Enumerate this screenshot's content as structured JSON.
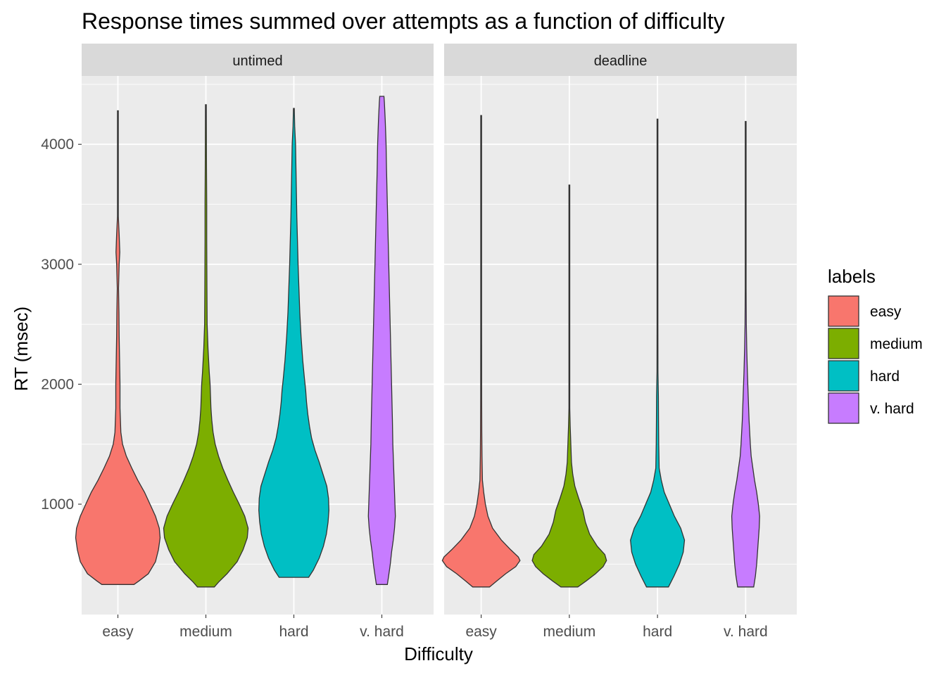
{
  "chart_data": {
    "type": "violin",
    "title": "Response times summed over attempts as a function of difficulty",
    "xlabel": "Difficulty",
    "ylabel": "RT (msec)",
    "categories": [
      "easy",
      "medium",
      "hard",
      "v. hard"
    ],
    "ylim": [
      80,
      4570
    ],
    "yticks": [
      1000,
      2000,
      3000,
      4000
    ],
    "grid": true,
    "legend": {
      "title": "labels",
      "position": "right",
      "entries": [
        "easy",
        "medium",
        "hard",
        "v. hard"
      ]
    },
    "colors": {
      "easy": "#F8766D",
      "medium": "#7CAE00",
      "hard": "#00BFC4",
      "v. hard": "#C77CFF",
      "panel_bg": "#EBEBEB",
      "strip_bg": "#D9D9D9",
      "grid": "#FFFFFF",
      "outline": "#333333"
    },
    "facets": [
      {
        "name": "untimed",
        "violins": [
          {
            "category": "easy",
            "min": 330,
            "max": 4280,
            "profile": [
              [
                330,
                0.38
              ],
              [
                360,
                0.5
              ],
              [
                420,
                0.72
              ],
              [
                520,
                0.89
              ],
              [
                620,
                0.96
              ],
              [
                720,
                1.0
              ],
              [
                800,
                0.98
              ],
              [
                900,
                0.89
              ],
              [
                1000,
                0.76
              ],
              [
                1100,
                0.63
              ],
              [
                1200,
                0.47
              ],
              [
                1300,
                0.33
              ],
              [
                1400,
                0.2
              ],
              [
                1500,
                0.11
              ],
              [
                1600,
                0.07
              ],
              [
                1800,
                0.05
              ],
              [
                2000,
                0.05
              ],
              [
                2200,
                0.04
              ],
              [
                2400,
                0.03
              ],
              [
                2600,
                0.025
              ],
              [
                2800,
                0.015
              ],
              [
                3000,
                0.03
              ],
              [
                3100,
                0.045
              ],
              [
                3250,
                0.03
              ],
              [
                3400,
                0.01
              ],
              [
                3600,
                0.008
              ],
              [
                4280,
                0.006
              ]
            ]
          },
          {
            "category": "medium",
            "min": 310,
            "max": 4330,
            "profile": [
              [
                310,
                0.2
              ],
              [
                350,
                0.3
              ],
              [
                420,
                0.5
              ],
              [
                520,
                0.74
              ],
              [
                620,
                0.88
              ],
              [
                720,
                0.98
              ],
              [
                800,
                1.0
              ],
              [
                900,
                0.92
              ],
              [
                1000,
                0.79
              ],
              [
                1100,
                0.65
              ],
              [
                1200,
                0.52
              ],
              [
                1300,
                0.4
              ],
              [
                1400,
                0.3
              ],
              [
                1500,
                0.22
              ],
              [
                1600,
                0.17
              ],
              [
                1700,
                0.14
              ],
              [
                1800,
                0.12
              ],
              [
                1900,
                0.11
              ],
              [
                2000,
                0.1
              ],
              [
                2100,
                0.08
              ],
              [
                2300,
                0.05
              ],
              [
                2500,
                0.03
              ],
              [
                2800,
                0.025
              ],
              [
                3200,
                0.02
              ],
              [
                3500,
                0.02
              ],
              [
                3800,
                0.015
              ],
              [
                4330,
                0.008
              ]
            ]
          },
          {
            "category": "hard",
            "min": 390,
            "max": 4300,
            "profile": [
              [
                390,
                0.35
              ],
              [
                450,
                0.46
              ],
              [
                550,
                0.6
              ],
              [
                650,
                0.7
              ],
              [
                750,
                0.77
              ],
              [
                850,
                0.81
              ],
              [
                950,
                0.83
              ],
              [
                1050,
                0.82
              ],
              [
                1150,
                0.78
              ],
              [
                1250,
                0.69
              ],
              [
                1350,
                0.6
              ],
              [
                1450,
                0.5
              ],
              [
                1550,
                0.42
              ],
              [
                1650,
                0.37
              ],
              [
                1750,
                0.33
              ],
              [
                1850,
                0.3
              ],
              [
                1950,
                0.28
              ],
              [
                2050,
                0.25
              ],
              [
                2200,
                0.21
              ],
              [
                2400,
                0.17
              ],
              [
                2600,
                0.14
              ],
              [
                2800,
                0.12
              ],
              [
                3000,
                0.1
              ],
              [
                3200,
                0.085
              ],
              [
                3400,
                0.07
              ],
              [
                3600,
                0.06
              ],
              [
                3800,
                0.05
              ],
              [
                4000,
                0.04
              ],
              [
                4150,
                0.02
              ],
              [
                4300,
                0.008
              ]
            ]
          },
          {
            "category": "v. hard",
            "min": 330,
            "max": 4400,
            "profile": [
              [
                330,
                0.13
              ],
              [
                400,
                0.16
              ],
              [
                500,
                0.2
              ],
              [
                600,
                0.23
              ],
              [
                700,
                0.27
              ],
              [
                800,
                0.3
              ],
              [
                900,
                0.32
              ],
              [
                1000,
                0.31
              ],
              [
                1100,
                0.3
              ],
              [
                1200,
                0.29
              ],
              [
                1300,
                0.28
              ],
              [
                1500,
                0.26
              ],
              [
                1700,
                0.25
              ],
              [
                2000,
                0.23
              ],
              [
                2300,
                0.21
              ],
              [
                2600,
                0.19
              ],
              [
                2900,
                0.17
              ],
              [
                3200,
                0.15
              ],
              [
                3500,
                0.13
              ],
              [
                3800,
                0.11
              ],
              [
                4000,
                0.1
              ],
              [
                4200,
                0.08
              ],
              [
                4350,
                0.06
              ],
              [
                4400,
                0.05
              ]
            ]
          }
        ]
      },
      {
        "name": "deadline",
        "violins": [
          {
            "category": "easy",
            "min": 310,
            "max": 4240,
            "profile": [
              [
                310,
                0.2
              ],
              [
                360,
                0.37
              ],
              [
                420,
                0.58
              ],
              [
                480,
                0.82
              ],
              [
                530,
                0.92
              ],
              [
                560,
                0.88
              ],
              [
                620,
                0.7
              ],
              [
                700,
                0.48
              ],
              [
                800,
                0.27
              ],
              [
                900,
                0.16
              ],
              [
                1000,
                0.1
              ],
              [
                1100,
                0.06
              ],
              [
                1200,
                0.03
              ],
              [
                1400,
                0.02
              ],
              [
                1600,
                0.015
              ],
              [
                1900,
                0.012
              ],
              [
                2500,
                0.008
              ],
              [
                4240,
                0.006
              ]
            ]
          },
          {
            "category": "medium",
            "min": 310,
            "max": 3660,
            "profile": [
              [
                310,
                0.2
              ],
              [
                360,
                0.4
              ],
              [
                420,
                0.62
              ],
              [
                480,
                0.8
              ],
              [
                530,
                0.88
              ],
              [
                580,
                0.84
              ],
              [
                650,
                0.66
              ],
              [
                750,
                0.48
              ],
              [
                850,
                0.38
              ],
              [
                950,
                0.32
              ],
              [
                1050,
                0.22
              ],
              [
                1150,
                0.13
              ],
              [
                1250,
                0.08
              ],
              [
                1350,
                0.05
              ],
              [
                1500,
                0.035
              ],
              [
                1650,
                0.02
              ],
              [
                1800,
                0.01
              ],
              [
                2500,
                0.008
              ],
              [
                3200,
                0.006
              ],
              [
                3660,
                0.005
              ]
            ]
          },
          {
            "category": "hard",
            "min": 310,
            "max": 4210,
            "profile": [
              [
                310,
                0.26
              ],
              [
                400,
                0.39
              ],
              [
                500,
                0.52
              ],
              [
                600,
                0.61
              ],
              [
                700,
                0.64
              ],
              [
                800,
                0.55
              ],
              [
                900,
                0.4
              ],
              [
                1000,
                0.28
              ],
              [
                1100,
                0.16
              ],
              [
                1200,
                0.09
              ],
              [
                1300,
                0.04
              ],
              [
                1500,
                0.03
              ],
              [
                1700,
                0.025
              ],
              [
                1900,
                0.022
              ],
              [
                2100,
                0.012
              ],
              [
                2500,
                0.01
              ],
              [
                3000,
                0.008
              ],
              [
                4210,
                0.006
              ]
            ]
          },
          {
            "category": "v. hard",
            "min": 310,
            "max": 4190,
            "profile": [
              [
                310,
                0.19
              ],
              [
                400,
                0.23
              ],
              [
                500,
                0.26
              ],
              [
                600,
                0.28
              ],
              [
                700,
                0.3
              ],
              [
                800,
                0.32
              ],
              [
                900,
                0.33
              ],
              [
                1000,
                0.3
              ],
              [
                1100,
                0.26
              ],
              [
                1200,
                0.21
              ],
              [
                1300,
                0.17
              ],
              [
                1400,
                0.13
              ],
              [
                1500,
                0.11
              ],
              [
                1700,
                0.08
              ],
              [
                1900,
                0.06
              ],
              [
                2100,
                0.04
              ],
              [
                2300,
                0.025
              ],
              [
                2500,
                0.015
              ],
              [
                2800,
                0.01
              ],
              [
                3200,
                0.008
              ],
              [
                4190,
                0.006
              ]
            ]
          }
        ]
      }
    ]
  }
}
